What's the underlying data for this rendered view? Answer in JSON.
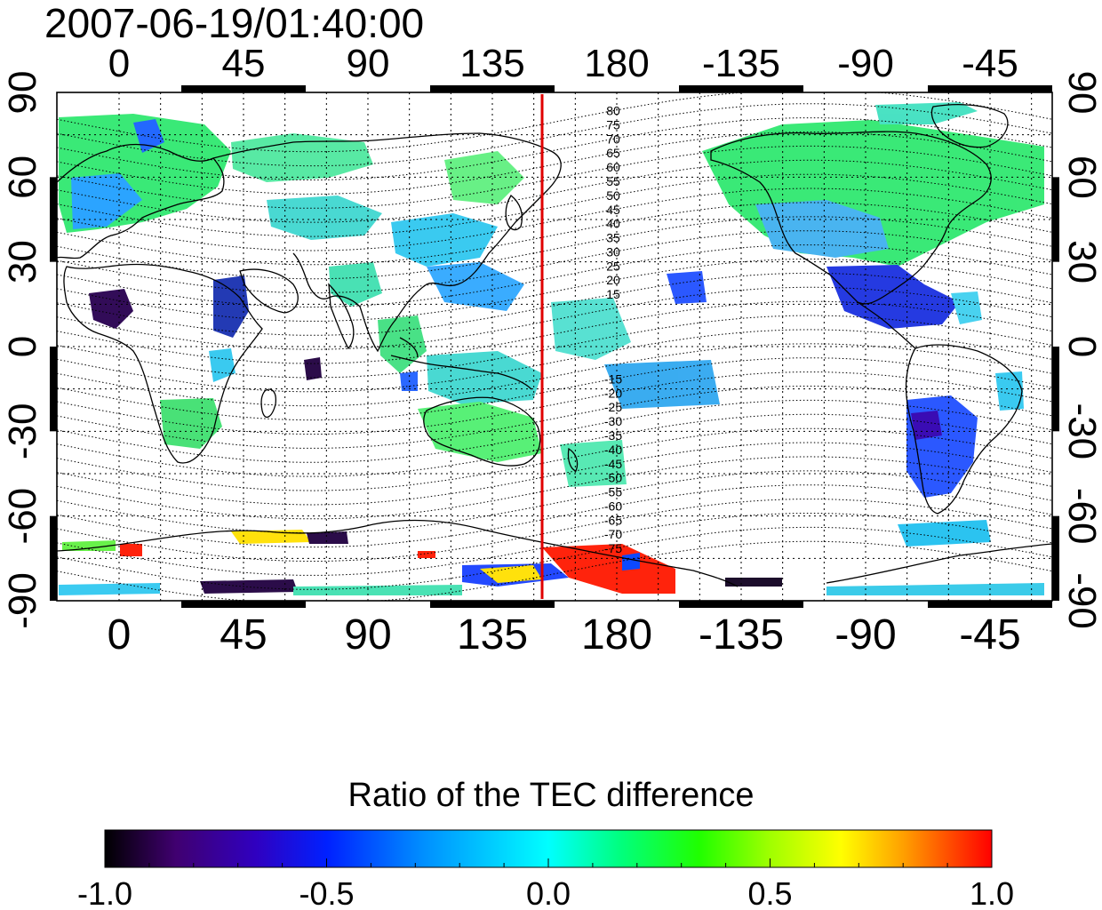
{
  "title": "2007-06-19/01:40:00",
  "map": {
    "lon_ticks": [
      "0",
      "45",
      "90",
      "135",
      "180",
      "-135",
      "-90",
      "-45"
    ],
    "lat_ticks": [
      "90",
      "60",
      "30",
      "0",
      "-30",
      "-60",
      "-90"
    ],
    "contour_labels_north": [
      "80",
      "75",
      "70",
      "65",
      "60",
      "55",
      "50",
      "45",
      "40",
      "35",
      "30",
      "25",
      "20",
      "15"
    ],
    "contour_labels_south": [
      "-15",
      "-20",
      "-25",
      "-30",
      "-35",
      "-40",
      "-45",
      "-50",
      "-55",
      "-60",
      "-65",
      "-70",
      "-75"
    ],
    "meridian_marker_longitude": 153,
    "colors": {
      "frame": "#000000",
      "marker": "#e00000",
      "contours": "#000000"
    }
  },
  "colorbar": {
    "title": "Ratio of the TEC difference",
    "tick_labels": [
      "-1.0",
      "-0.5",
      "0.0",
      "0.5",
      "1.0"
    ],
    "range": [
      -1.0,
      1.0
    ],
    "colors": [
      "#000000",
      "#400070",
      "#3000c0",
      "#0020ff",
      "#0090ff",
      "#00ffff",
      "#00ff80",
      "#20ff00",
      "#a0ff00",
      "#ffff00",
      "#ffa000",
      "#ff4000",
      "#ff0000"
    ]
  }
}
